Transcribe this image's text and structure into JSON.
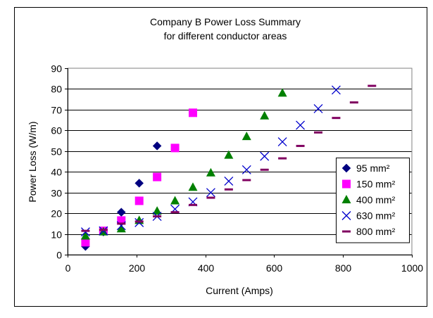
{
  "chart_data": {
    "type": "scatter",
    "title_lines": [
      "Company B Power Loss Summary",
      "for different conductor areas"
    ],
    "xlabel": "Current (Amps)",
    "ylabel": "Power Loss (W/m)",
    "xlim": [
      0,
      1000
    ],
    "ylim": [
      0,
      90
    ],
    "x_ticks": [
      0,
      200,
      400,
      600,
      800,
      1000
    ],
    "y_ticks": [
      0,
      10,
      20,
      30,
      40,
      50,
      60,
      70,
      80,
      90
    ],
    "grid": "horizontal",
    "legend_position": "right",
    "series": [
      {
        "name": "95 mm²",
        "marker": "diamond",
        "color": "#000080",
        "points": [
          [
            52,
            4
          ],
          [
            104,
            11
          ],
          [
            156,
            20.5
          ],
          [
            208,
            34.5
          ],
          [
            260,
            52.5
          ]
        ]
      },
      {
        "name": "150 mm²",
        "marker": "square",
        "color": "#ff00ff",
        "points": [
          [
            52,
            6
          ],
          [
            104,
            11.5
          ],
          [
            156,
            16.5
          ],
          [
            208,
            26
          ],
          [
            260,
            37.5
          ],
          [
            312,
            51.5
          ],
          [
            364,
            68.5
          ]
        ]
      },
      {
        "name": "400 mm²",
        "marker": "triangle",
        "color": "#008000",
        "points": [
          [
            52,
            9
          ],
          [
            104,
            11
          ],
          [
            156,
            12.5
          ],
          [
            208,
            16.5
          ],
          [
            260,
            21
          ],
          [
            312,
            26
          ],
          [
            364,
            32.5
          ],
          [
            416,
            39.5
          ],
          [
            468,
            48
          ],
          [
            520,
            57
          ],
          [
            572,
            67
          ],
          [
            624,
            78
          ]
        ]
      },
      {
        "name": "630 mm²",
        "marker": "x",
        "color": "#0000cc",
        "points": [
          [
            52,
            11
          ],
          [
            104,
            11.5
          ],
          [
            156,
            14
          ],
          [
            208,
            15.5
          ],
          [
            260,
            18.5
          ],
          [
            312,
            22
          ],
          [
            364,
            25.5
          ],
          [
            416,
            30
          ],
          [
            468,
            35.5
          ],
          [
            520,
            41
          ],
          [
            572,
            47.5
          ],
          [
            624,
            54.5
          ],
          [
            676,
            62.5
          ],
          [
            728,
            70.5
          ],
          [
            780,
            79.5
          ]
        ]
      },
      {
        "name": "800 mm²",
        "marker": "dash",
        "color": "#800060",
        "points": [
          [
            52,
            11.5
          ],
          [
            104,
            12
          ],
          [
            156,
            15
          ],
          [
            208,
            16
          ],
          [
            260,
            18.5
          ],
          [
            312,
            20.5
          ],
          [
            364,
            24
          ],
          [
            416,
            27.5
          ],
          [
            468,
            31.5
          ],
          [
            520,
            36
          ],
          [
            572,
            41
          ],
          [
            624,
            46.5
          ],
          [
            676,
            52.5
          ],
          [
            728,
            59
          ],
          [
            780,
            66
          ],
          [
            832,
            73.5
          ],
          [
            884,
            81.5
          ]
        ]
      }
    ]
  }
}
